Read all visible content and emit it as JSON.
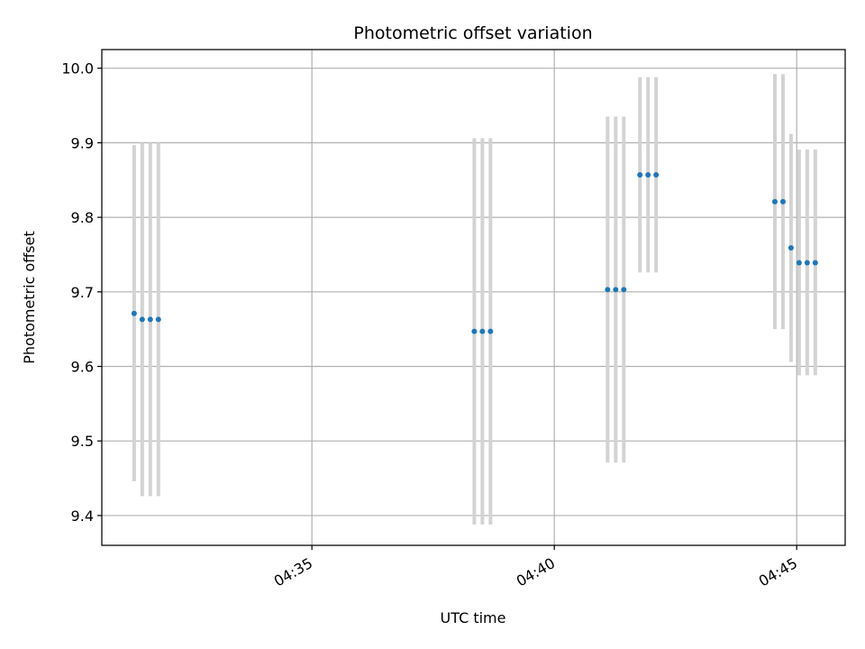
{
  "chart_data": {
    "type": "scatter",
    "title": "Photometric offset variation",
    "xlabel": "UTC time",
    "ylabel": "Photometric offset",
    "xlim": [
      "04:30:40",
      "04:46:00"
    ],
    "ylim": [
      9.36,
      10.025
    ],
    "x_ticks": [
      "04:35",
      "04:40",
      "04:45"
    ],
    "y_ticks": [
      9.4,
      9.5,
      9.6,
      9.7,
      9.8,
      9.9,
      10.0
    ],
    "grid": true,
    "marker_color": "#1f77b4",
    "errorbar_color": "#d3d3d3",
    "series": [
      {
        "points": [
          {
            "x": "04:31:20",
            "y": 9.671,
            "ylow": 9.446,
            "yhigh": 9.897
          },
          {
            "x": "04:31:30",
            "y": 9.663,
            "ylow": 9.426,
            "yhigh": 9.9
          },
          {
            "x": "04:31:40",
            "y": 9.663,
            "ylow": 9.426,
            "yhigh": 9.9
          },
          {
            "x": "04:31:50",
            "y": 9.663,
            "ylow": 9.426,
            "yhigh": 9.9
          },
          {
            "x": "04:38:21",
            "y": 9.647,
            "ylow": 9.388,
            "yhigh": 9.906
          },
          {
            "x": "04:38:31",
            "y": 9.647,
            "ylow": 9.388,
            "yhigh": 9.906
          },
          {
            "x": "04:38:41",
            "y": 9.647,
            "ylow": 9.388,
            "yhigh": 9.906
          },
          {
            "x": "04:41:06",
            "y": 9.703,
            "ylow": 9.471,
            "yhigh": 9.935
          },
          {
            "x": "04:41:16",
            "y": 9.703,
            "ylow": 9.471,
            "yhigh": 9.935
          },
          {
            "x": "04:41:26",
            "y": 9.703,
            "ylow": 9.471,
            "yhigh": 9.935
          },
          {
            "x": "04:41:46",
            "y": 9.857,
            "ylow": 9.726,
            "yhigh": 9.988
          },
          {
            "x": "04:41:56",
            "y": 9.857,
            "ylow": 9.726,
            "yhigh": 9.988
          },
          {
            "x": "04:42:06",
            "y": 9.857,
            "ylow": 9.726,
            "yhigh": 9.988
          },
          {
            "x": "04:44:33",
            "y": 9.821,
            "ylow": 9.65,
            "yhigh": 9.992
          },
          {
            "x": "04:44:43",
            "y": 9.821,
            "ylow": 9.65,
            "yhigh": 9.992
          },
          {
            "x": "04:44:53",
            "y": 9.759,
            "ylow": 9.606,
            "yhigh": 9.912
          },
          {
            "x": "04:45:03",
            "y": 9.739,
            "ylow": 9.588,
            "yhigh": 9.891
          },
          {
            "x": "04:45:13",
            "y": 9.739,
            "ylow": 9.588,
            "yhigh": 9.891
          },
          {
            "x": "04:45:23",
            "y": 9.739,
            "ylow": 9.588,
            "yhigh": 9.891
          }
        ]
      }
    ]
  }
}
